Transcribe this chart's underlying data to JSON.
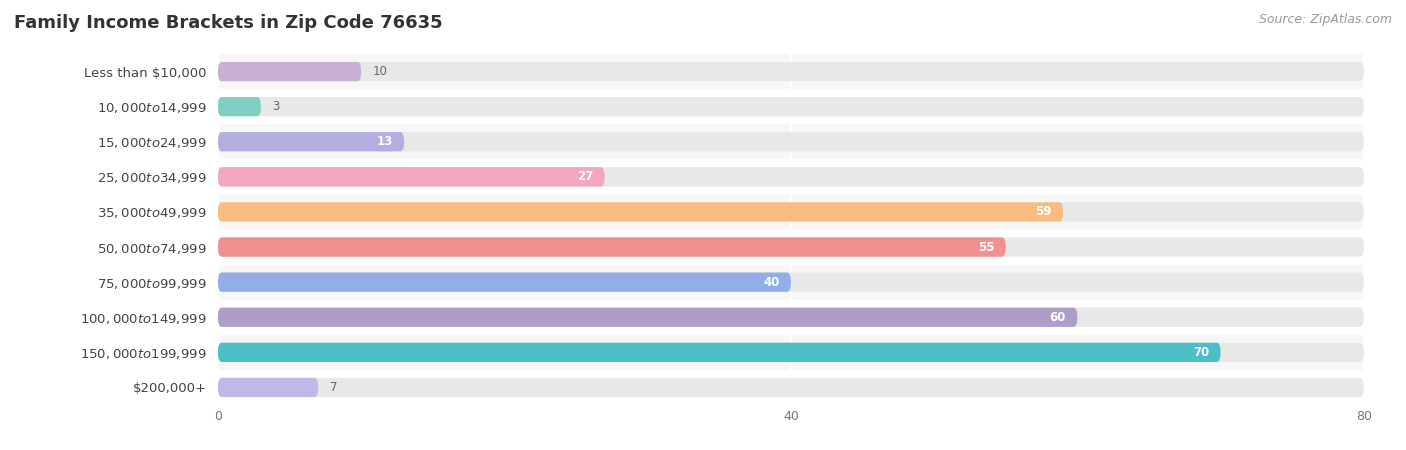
{
  "title": "Family Income Brackets in Zip Code 76635",
  "source": "Source: ZipAtlas.com",
  "categories": [
    "Less than $10,000",
    "$10,000 to $14,999",
    "$15,000 to $24,999",
    "$25,000 to $34,999",
    "$35,000 to $49,999",
    "$50,000 to $74,999",
    "$75,000 to $99,999",
    "$100,000 to $149,999",
    "$150,000 to $199,999",
    "$200,000+"
  ],
  "values": [
    10,
    3,
    13,
    27,
    59,
    55,
    40,
    60,
    70,
    7
  ],
  "bar_colors": [
    "#c9aed6",
    "#7ecec4",
    "#b3aee0",
    "#f4a6c0",
    "#f9bc7e",
    "#f09090",
    "#92aee8",
    "#b09cc8",
    "#4bbec8",
    "#c0b8e8"
  ],
  "xlim": [
    0,
    80
  ],
  "xticks": [
    0,
    40,
    80
  ],
  "background_color": "#ffffff",
  "row_bg_even": "#f7f7f7",
  "row_bg_odd": "#ffffff",
  "bar_bg_color": "#e8e8e8",
  "title_fontsize": 13,
  "label_fontsize": 9.5,
  "value_fontsize": 8.5,
  "source_fontsize": 9,
  "label_color": "#444444",
  "title_color": "#333333",
  "source_color": "#999999",
  "value_color_inside": "#ffffff",
  "value_color_outside": "#666666",
  "inside_threshold": 12
}
